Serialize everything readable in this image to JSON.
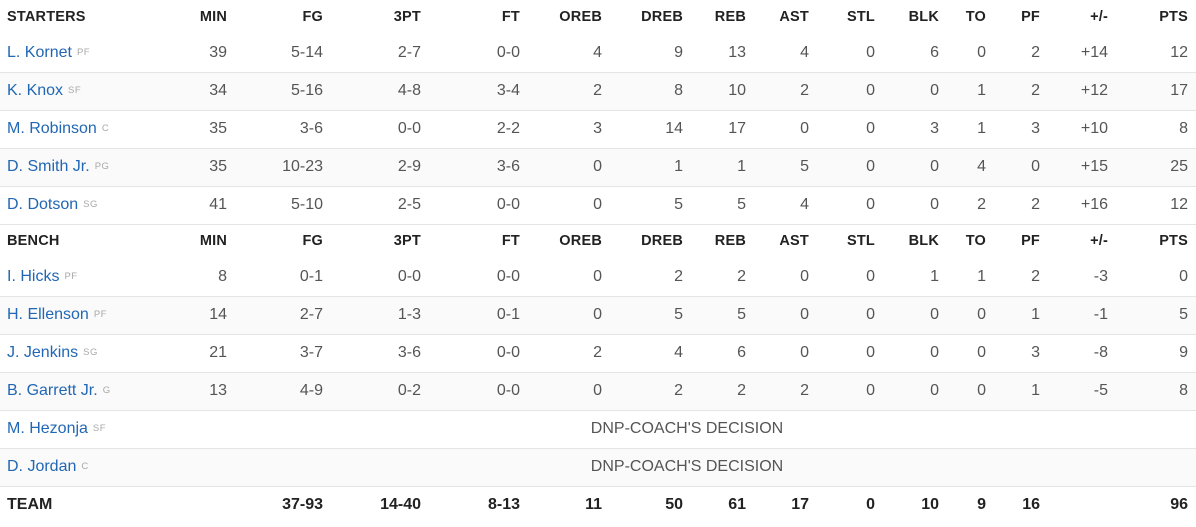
{
  "columns": [
    "MIN",
    "FG",
    "3PT",
    "FT",
    "OREB",
    "DREB",
    "REB",
    "AST",
    "STL",
    "BLK",
    "TO",
    "PF",
    "+/-",
    "PTS"
  ],
  "starters": {
    "label": "STARTERS",
    "players": [
      {
        "name": "L. Kornet",
        "pos": "PF",
        "stats": [
          "39",
          "5-14",
          "2-7",
          "0-0",
          "4",
          "9",
          "13",
          "4",
          "0",
          "6",
          "0",
          "2",
          "+14",
          "12"
        ]
      },
      {
        "name": "K. Knox",
        "pos": "SF",
        "stats": [
          "34",
          "5-16",
          "4-8",
          "3-4",
          "2",
          "8",
          "10",
          "2",
          "0",
          "0",
          "1",
          "2",
          "+12",
          "17"
        ]
      },
      {
        "name": "M. Robinson",
        "pos": "C",
        "stats": [
          "35",
          "3-6",
          "0-0",
          "2-2",
          "3",
          "14",
          "17",
          "0",
          "0",
          "3",
          "1",
          "3",
          "+10",
          "8"
        ]
      },
      {
        "name": "D. Smith Jr.",
        "pos": "PG",
        "stats": [
          "35",
          "10-23",
          "2-9",
          "3-6",
          "0",
          "1",
          "1",
          "5",
          "0",
          "0",
          "4",
          "0",
          "+15",
          "25"
        ]
      },
      {
        "name": "D. Dotson",
        "pos": "SG",
        "stats": [
          "41",
          "5-10",
          "2-5",
          "0-0",
          "0",
          "5",
          "5",
          "4",
          "0",
          "0",
          "2",
          "2",
          "+16",
          "12"
        ]
      }
    ]
  },
  "bench": {
    "label": "BENCH",
    "players": [
      {
        "name": "I. Hicks",
        "pos": "PF",
        "stats": [
          "8",
          "0-1",
          "0-0",
          "0-0",
          "0",
          "2",
          "2",
          "0",
          "0",
          "1",
          "1",
          "2",
          "-3",
          "0"
        ]
      },
      {
        "name": "H. Ellenson",
        "pos": "PF",
        "stats": [
          "14",
          "2-7",
          "1-3",
          "0-1",
          "0",
          "5",
          "5",
          "0",
          "0",
          "0",
          "0",
          "1",
          "-1",
          "5"
        ]
      },
      {
        "name": "J. Jenkins",
        "pos": "SG",
        "stats": [
          "21",
          "3-7",
          "3-6",
          "0-0",
          "2",
          "4",
          "6",
          "0",
          "0",
          "0",
          "0",
          "3",
          "-8",
          "9"
        ]
      },
      {
        "name": "B. Garrett Jr.",
        "pos": "G",
        "stats": [
          "13",
          "4-9",
          "0-2",
          "0-0",
          "0",
          "2",
          "2",
          "2",
          "0",
          "0",
          "0",
          "1",
          "-5",
          "8"
        ]
      }
    ],
    "dnp": [
      {
        "name": "M. Hezonja",
        "pos": "SF",
        "note": "DNP-COACH'S DECISION"
      },
      {
        "name": "D. Jordan",
        "pos": "C",
        "note": "DNP-COACH'S DECISION"
      }
    ]
  },
  "team": {
    "label": "TEAM",
    "stats": [
      "",
      "37-93",
      "14-40",
      "8-13",
      "11",
      "50",
      "61",
      "17",
      "0",
      "10",
      "9",
      "16",
      "",
      "96"
    ]
  },
  "colors": {
    "link": "#2167b4",
    "border": "#e4e4e4",
    "alt_row": "#fafafa"
  }
}
